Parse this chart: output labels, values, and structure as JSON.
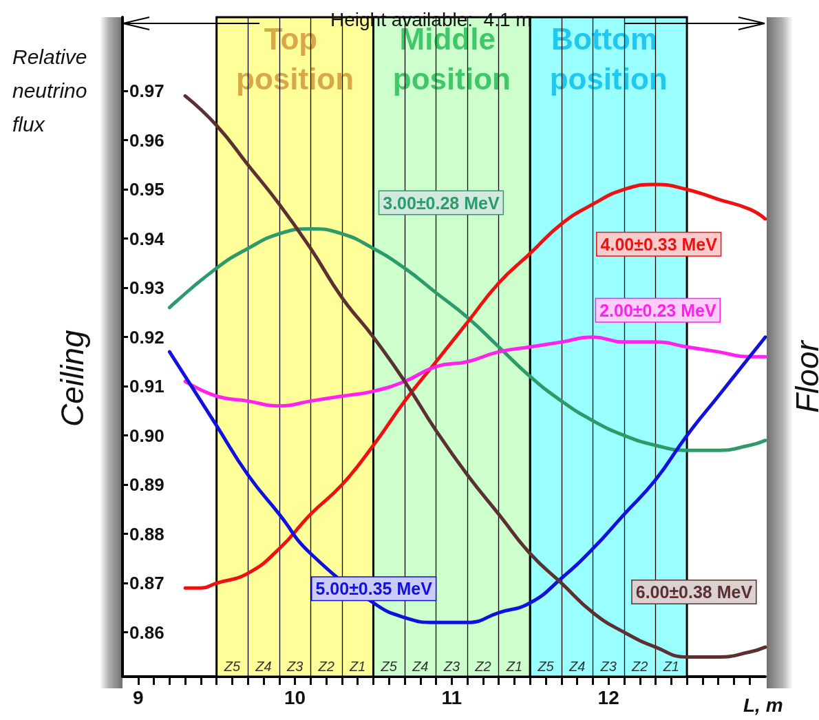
{
  "chart_data": {
    "type": "line",
    "ylabel": "Relative neutrino flux",
    "xlabel": "L, m",
    "xlim": [
      8.9,
      13.0
    ],
    "ylim": [
      0.851,
      0.985
    ],
    "xticks": [
      9,
      {
        "value": 9.1,
        "label": null
      },
      {
        "value": 9.2,
        "label": null
      },
      {
        "value": 9.3,
        "label": null
      },
      {
        "value": 9.4,
        "label": null
      },
      {
        "value": 9.5,
        "label": null
      },
      {
        "value": 9.6,
        "label": null
      },
      {
        "value": 9.7,
        "label": null
      },
      {
        "value": 9.8,
        "label": null
      },
      {
        "value": 9.9,
        "label": null
      },
      10,
      {
        "value": 10.1,
        "label": null
      },
      {
        "value": 10.2,
        "label": null
      },
      {
        "value": 10.3,
        "label": null
      },
      {
        "value": 10.4,
        "label": null
      },
      {
        "value": 10.5,
        "label": null
      },
      {
        "value": 10.6,
        "label": null
      },
      {
        "value": 10.7,
        "label": null
      },
      {
        "value": 10.8,
        "label": null
      },
      {
        "value": 10.9,
        "label": null
      },
      11,
      {
        "value": 11.1,
        "label": null
      },
      {
        "value": 11.2,
        "label": null
      },
      {
        "value": 11.3,
        "label": null
      },
      {
        "value": 11.4,
        "label": null
      },
      {
        "value": 11.5,
        "label": null
      },
      {
        "value": 11.6,
        "label": null
      },
      {
        "value": 11.7,
        "label": null
      },
      {
        "value": 11.8,
        "label": null
      },
      {
        "value": 11.9,
        "label": null
      },
      12,
      {
        "value": 12.1,
        "label": null
      },
      {
        "value": 12.2,
        "label": null
      },
      {
        "value": 12.3,
        "label": null
      },
      {
        "value": 12.4,
        "label": null
      },
      {
        "value": 12.5,
        "label": null
      },
      {
        "value": 12.6,
        "label": null
      },
      {
        "value": 12.7,
        "label": null
      },
      {
        "value": 12.8,
        "label": null
      },
      {
        "value": 12.9,
        "label": null
      }
    ],
    "yticks": [
      0.86,
      0.87,
      0.88,
      0.89,
      {
        "value": 0.9,
        "label": "0.90"
      },
      0.91,
      0.92,
      0.93,
      0.94,
      0.95,
      0.96,
      0.97
    ],
    "grid": false,
    "legend": false,
    "marker": "none",
    "line_style": "solid",
    "series": [
      {
        "name": "3.00±0.28 MeV",
        "color": "#2e9a6a",
        "x": [
          9.2,
          9.5,
          9.7,
          9.9,
          10.1,
          10.3,
          10.5,
          10.7,
          10.9,
          11.1,
          11.3,
          11.5,
          11.7,
          11.9,
          12.1,
          12.3,
          12.5,
          12.7,
          12.9,
          13.0
        ],
        "values": [
          0.926,
          0.934,
          0.938,
          0.941,
          0.942,
          0.941,
          0.938,
          0.934,
          0.929,
          0.924,
          0.918,
          0.912,
          0.907,
          0.903,
          0.9,
          0.898,
          0.897,
          0.897,
          0.898,
          0.899
        ]
      },
      {
        "name": "4.00±0.33 MeV",
        "color": "#ee1111",
        "x": [
          9.3,
          9.4,
          9.5,
          9.7,
          9.9,
          10.1,
          10.3,
          10.5,
          10.7,
          10.9,
          11.1,
          11.3,
          11.5,
          11.7,
          11.9,
          12.1,
          12.3,
          12.5,
          12.7,
          12.9,
          13.0
        ],
        "values": [
          0.869,
          0.869,
          0.87,
          0.872,
          0.877,
          0.884,
          0.89,
          0.898,
          0.907,
          0.915,
          0.923,
          0.931,
          0.937,
          0.943,
          0.947,
          0.95,
          0.951,
          0.95,
          0.948,
          0.946,
          0.944
        ]
      },
      {
        "name": "2.00±0.23 MeV",
        "color": "#ff22ee",
        "x": [
          9.3,
          9.5,
          9.7,
          9.9,
          10.1,
          10.3,
          10.5,
          10.7,
          10.9,
          11.1,
          11.3,
          11.5,
          11.7,
          11.9,
          12.1,
          12.3,
          12.5,
          12.7,
          12.9,
          13.0
        ],
        "values": [
          0.911,
          0.908,
          0.907,
          0.906,
          0.907,
          0.908,
          0.909,
          0.911,
          0.914,
          0.915,
          0.917,
          0.918,
          0.919,
          0.92,
          0.919,
          0.919,
          0.918,
          0.917,
          0.916,
          0.916
        ]
      },
      {
        "name": "5.00±0.35 MeV",
        "color": "#1111dd",
        "x": [
          9.2,
          9.5,
          9.7,
          9.9,
          10.1,
          10.3,
          10.5,
          10.7,
          10.9,
          11.1,
          11.3,
          11.5,
          11.7,
          11.9,
          12.1,
          12.3,
          12.5,
          12.7,
          12.9,
          13.0
        ],
        "values": [
          0.917,
          0.902,
          0.892,
          0.884,
          0.876,
          null,
          0.866,
          0.863,
          0.862,
          0.862,
          0.864,
          0.866,
          0.871,
          0.877,
          0.884,
          0.891,
          0.9,
          0.908,
          0.916,
          0.92
        ]
      },
      {
        "name": "6.00±0.38 MeV",
        "color": "#5a3030",
        "x": [
          9.3,
          9.5,
          9.7,
          9.9,
          10.1,
          10.3,
          10.5,
          10.7,
          10.9,
          11.1,
          11.3,
          11.5,
          11.7,
          11.9,
          12.1,
          12.3,
          12.5,
          12.7,
          12.9,
          13.0
        ],
        "values": [
          0.969,
          0.963,
          0.955,
          0.947,
          0.938,
          0.928,
          0.92,
          0.911,
          0.901,
          0.892,
          0.884,
          0.876,
          0.87,
          0.864,
          0.86,
          0.857,
          0.855,
          0.855,
          0.856,
          0.857
        ]
      }
    ],
    "bands": [
      {
        "axis": "x",
        "from": 9.5,
        "to": 10.5,
        "label": "Top position",
        "color": "#ffff99"
      },
      {
        "axis": "x",
        "from": 10.5,
        "to": 11.5,
        "label": "Middle position",
        "color": "#ccffcc"
      },
      {
        "axis": "x",
        "from": 11.5,
        "to": 12.5,
        "label": "Bottom position",
        "color": "#99ffff"
      }
    ],
    "ref_lines": [
      {
        "axis": "x",
        "value": 9.7
      },
      {
        "axis": "x",
        "value": 9.9
      },
      {
        "axis": "x",
        "value": 10.1
      },
      {
        "axis": "x",
        "value": 10.3
      },
      {
        "axis": "x",
        "value": 10.7
      },
      {
        "axis": "x",
        "value": 10.9
      },
      {
        "axis": "x",
        "value": 11.1
      },
      {
        "axis": "x",
        "value": 11.3
      },
      {
        "axis": "x",
        "value": 11.7
      },
      {
        "axis": "x",
        "value": 11.9
      },
      {
        "axis": "x",
        "value": 12.1
      },
      {
        "axis": "x",
        "value": 12.3
      }
    ],
    "annotations": [
      "Height available:  4.1 m",
      "Ceiling",
      "Floor",
      "Z5",
      "Z4",
      "Z3",
      "Z2",
      "Z1",
      "Z5",
      "Z4",
      "Z3",
      "Z2",
      "Z1",
      "Z5",
      "Z4",
      "Z3",
      "Z2",
      "Z1"
    ]
  }
}
